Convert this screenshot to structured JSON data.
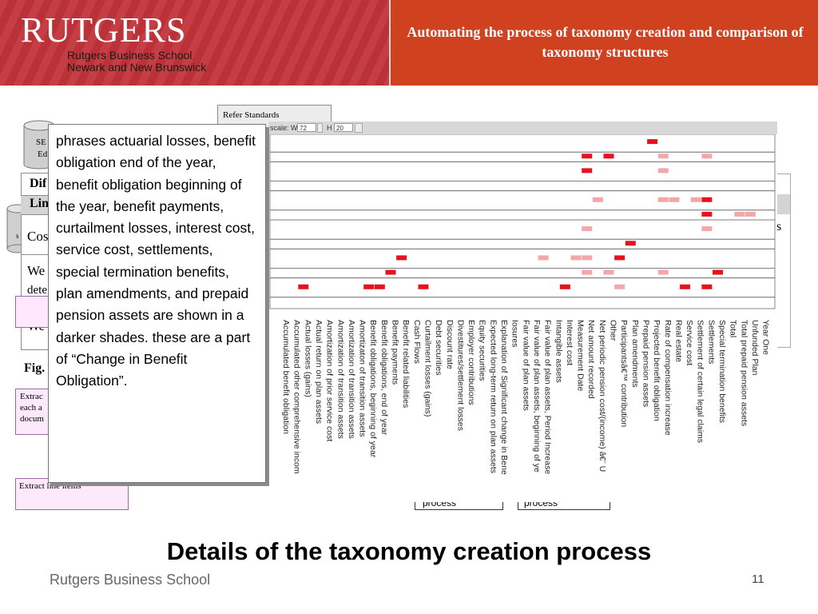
{
  "header": {
    "logo": "RUTGERS",
    "school_line1": "Rutgers Business School",
    "school_line2": "Newark and New Brunswick",
    "title": "Automating the process of taxonomy creation and comparison of taxonomy structures"
  },
  "background": {
    "refer_standards": "Refer Standards",
    "cyl1_a": "SE",
    "cyl1_b": "Ed",
    "cyl2": "s",
    "dif": "Dif",
    "lin": "Lin",
    "cos": "Cos",
    "we1": "We",
    "dete": "dete",
    "we2": "We",
    "fig": "Fig.",
    "extract_line1": "Extrac",
    "extract_line2": "each a",
    "extract_line3": "docum",
    "extract_line_items": "Extract line items",
    "right_s": "s",
    "process1": "process",
    "process2": "process"
  },
  "toolbar": {
    "scale_label": "scale: W",
    "w_value": "72",
    "h_label": "H",
    "h_value": "20"
  },
  "callout": {
    "text": "phrases actuarial losses, benefit obligation end of the year, benefit obligation beginning of the year, benefit payments, curtailment losses, interest cost, service cost, settlements, special termination benefits, plan amendments, and prepaid pension assets are shown in a darker shades. these are a part of  “Change in Benefit Obligation”."
  },
  "chart_data": {
    "type": "heatmap",
    "columns": [
      "Accumulated benefit obligation",
      "Accumulated other comprehensive incom",
      "Actual losses (gains)",
      "Actual return on plan assets",
      "Amortization of prior service cost",
      "Amortization of transition assets",
      "Amortization of transition assets",
      "Amortizaton of transition assets",
      "Benefit obligations, beginning of year",
      "Benefit obligations, end of year",
      "Benefit payments",
      "Benefit related liabilities",
      "Cash Flows",
      "Curtailment losses (gains)",
      "Debt securities",
      "Discount rate",
      "Divestitures/settlement losses",
      "Employer contributions",
      "Equity securities",
      "Expected long-term return on plan assets",
      "Explanation of Significant change in Bene",
      "Iosures",
      "Fair value of plan assets",
      "Fair value of plan assets, beginning of ye",
      "Fair value of plan assets, Period Increase",
      "Intangible assets",
      "Interest cost",
      "Measurement Date",
      "Net amount recorded",
      "Net periodic pension cost/(income) â€¨ U",
      "Other",
      "Participantsâ€™ contribution",
      "Plan amendments",
      "Prepaid pension assets",
      "Projected benefit obligation",
      "Rate of compensation increase",
      "Real estate",
      "Service cost",
      "Settlement of certain legal claims",
      "Settlements",
      "Special termination benefits",
      "Total",
      "Total prepaid pension assets",
      "Unfunded Plan",
      "Year One"
    ],
    "row_count": 12,
    "cells": [
      {
        "col": 2,
        "row": 10,
        "intensity": "dark"
      },
      {
        "col": 8,
        "row": 10,
        "intensity": "dark"
      },
      {
        "col": 9,
        "row": 10,
        "intensity": "dark"
      },
      {
        "col": 10,
        "row": 9,
        "intensity": "dark"
      },
      {
        "col": 11,
        "row": 8,
        "intensity": "dark"
      },
      {
        "col": 13,
        "row": 10,
        "intensity": "dark"
      },
      {
        "col": 24,
        "row": 8,
        "intensity": "light"
      },
      {
        "col": 26,
        "row": 10,
        "intensity": "dark"
      },
      {
        "col": 27,
        "row": 8,
        "intensity": "light"
      },
      {
        "col": 28,
        "row": 1,
        "intensity": "dark"
      },
      {
        "col": 28,
        "row": 2,
        "intensity": "dark"
      },
      {
        "col": 28,
        "row": 6,
        "intensity": "light"
      },
      {
        "col": 28,
        "row": 8,
        "intensity": "light"
      },
      {
        "col": 28,
        "row": 9,
        "intensity": "light"
      },
      {
        "col": 29,
        "row": 4,
        "intensity": "light"
      },
      {
        "col": 30,
        "row": 1,
        "intensity": "dark"
      },
      {
        "col": 30,
        "row": 9,
        "intensity": "light"
      },
      {
        "col": 31,
        "row": 8,
        "intensity": "dark"
      },
      {
        "col": 31,
        "row": 10,
        "intensity": "light"
      },
      {
        "col": 32,
        "row": 7,
        "intensity": "dark"
      },
      {
        "col": 34,
        "row": 0,
        "intensity": "dark"
      },
      {
        "col": 35,
        "row": 1,
        "intensity": "light"
      },
      {
        "col": 35,
        "row": 2,
        "intensity": "light"
      },
      {
        "col": 35,
        "row": 4,
        "intensity": "light"
      },
      {
        "col": 35,
        "row": 9,
        "intensity": "light"
      },
      {
        "col": 36,
        "row": 4,
        "intensity": "light"
      },
      {
        "col": 37,
        "row": 10,
        "intensity": "dark"
      },
      {
        "col": 38,
        "row": 4,
        "intensity": "light"
      },
      {
        "col": 39,
        "row": 1,
        "intensity": "light"
      },
      {
        "col": 39,
        "row": 4,
        "intensity": "dark"
      },
      {
        "col": 39,
        "row": 5,
        "intensity": "dark"
      },
      {
        "col": 39,
        "row": 6,
        "intensity": "light"
      },
      {
        "col": 39,
        "row": 10,
        "intensity": "dark"
      },
      {
        "col": 40,
        "row": 9,
        "intensity": "dark"
      },
      {
        "col": 42,
        "row": 5,
        "intensity": "light"
      },
      {
        "col": 43,
        "row": 5,
        "intensity": "light"
      }
    ],
    "colors": {
      "dark": "#e8121e",
      "light": "#f4a7a9"
    }
  },
  "footer": {
    "title": "Details of the taxonomy creation process",
    "school": "Rutgers Business School",
    "page": "11"
  }
}
